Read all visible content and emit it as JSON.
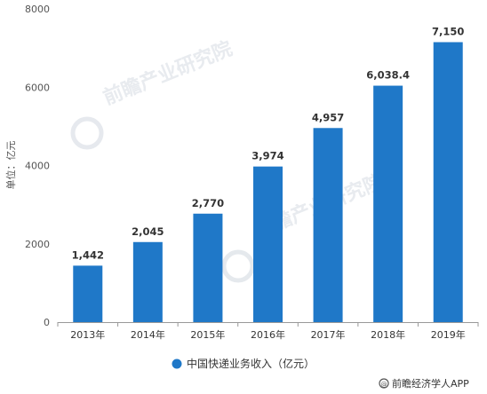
{
  "chart_data": {
    "type": "bar",
    "title": "",
    "ylabel": "单位：亿元",
    "xlabel": "",
    "categories": [
      "2013年",
      "2014年",
      "2015年",
      "2016年",
      "2017年",
      "2018年",
      "2019年"
    ],
    "series": [
      {
        "name": "中国快递业务收入（亿元）",
        "values": [
          1442,
          2045,
          2770,
          3974,
          4957,
          6038.4,
          7150
        ],
        "labels": [
          "1,442",
          "2,045",
          "2,770",
          "3,974",
          "4,957",
          "6,038.4",
          "7,150"
        ],
        "color": "#1f78c8"
      }
    ],
    "ylim": [
      0,
      8000
    ],
    "yticks": [
      0,
      2000,
      4000,
      6000,
      8000
    ],
    "grid": false,
    "legend_position": "bottom-center"
  },
  "credit": "前瞻经济学人APP",
  "watermark": "前瞻产业研究院",
  "colors": {
    "bar": "#1f78c8",
    "axis": "#999999"
  }
}
